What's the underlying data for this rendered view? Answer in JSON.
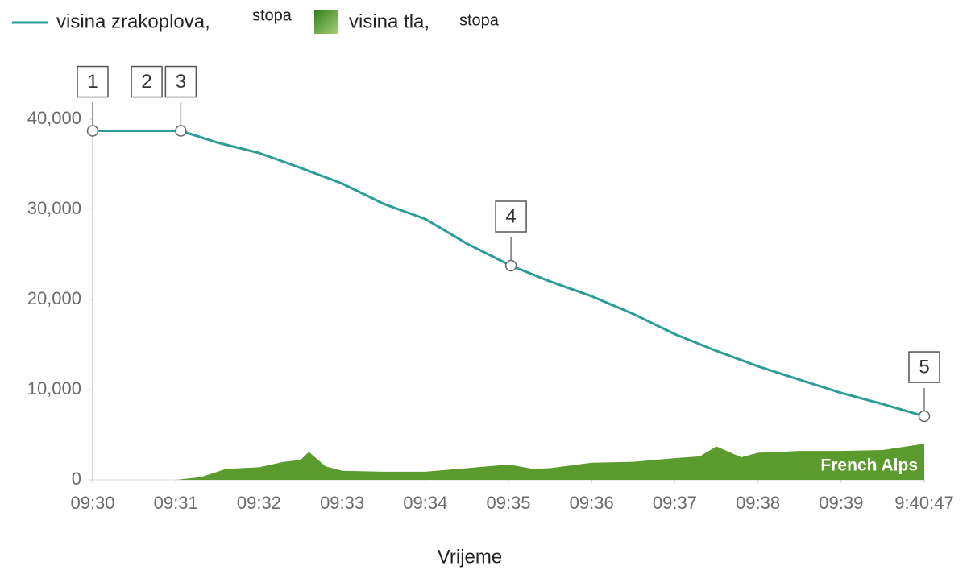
{
  "chart_data": {
    "type": "line",
    "x_label": "Vrijeme",
    "xlim": [
      0,
      10
    ],
    "xticks": [
      {
        "value": 0,
        "label": "09:30"
      },
      {
        "value": 1,
        "label": "09:31"
      },
      {
        "value": 2,
        "label": "09:32"
      },
      {
        "value": 3,
        "label": "09:33"
      },
      {
        "value": 4,
        "label": "09:34"
      },
      {
        "value": 5,
        "label": "09:35"
      },
      {
        "value": 6,
        "label": "09:36"
      },
      {
        "value": 7,
        "label": "09:37"
      },
      {
        "value": 8,
        "label": "09:38"
      },
      {
        "value": 9,
        "label": "09:39"
      },
      {
        "value": 10,
        "label": "9:40:47"
      }
    ],
    "ylim": [
      0,
      40000
    ],
    "yticks": [
      0,
      {
        "value": 10000,
        "label": "10,000"
      },
      {
        "value": 20000,
        "label": "20,000"
      },
      {
        "value": 30000,
        "label": "30,000"
      },
      {
        "value": 40000,
        "label": "40,000"
      }
    ],
    "series": [
      {
        "name": "visina zrakoplova,",
        "unit": "stopa",
        "color": "#2b9c9a",
        "type": "line",
        "x": [
          0,
          1.06,
          1.5,
          2,
          2.5,
          3,
          3.5,
          4,
          4.5,
          5.03,
          5.5,
          6,
          6.5,
          7,
          7.5,
          8,
          8.5,
          9,
          9.5,
          10
        ],
        "values": [
          38700,
          38700,
          37400,
          36250,
          34600,
          32860,
          30600,
          28930,
          26200,
          23750,
          22000,
          20360,
          18400,
          16160,
          14300,
          12590,
          11100,
          9640,
          8400,
          7050
        ]
      },
      {
        "name": "visina tla,",
        "unit": "stopa",
        "color": "#5b9a2c",
        "type": "area",
        "annotation": "French Alps",
        "x": [
          1,
          1.3,
          1.6,
          2,
          2.3,
          2.5,
          2.6,
          2.8,
          3,
          3.5,
          4,
          4.5,
          5,
          5.3,
          5.5,
          6,
          6.5,
          7,
          7.3,
          7.5,
          7.8,
          8,
          8.5,
          9,
          9.5,
          10
        ],
        "values": [
          0,
          300,
          1200,
          1400,
          2000,
          2200,
          3100,
          1500,
          1000,
          900,
          900,
          1300,
          1700,
          1200,
          1300,
          1900,
          2000,
          2400,
          2600,
          3700,
          2500,
          3000,
          3200,
          3200,
          3300,
          4000
        ]
      }
    ],
    "markers": [
      {
        "label": "1",
        "x": 0,
        "y": 38700
      },
      {
        "label": "2",
        "x": 0.65
      },
      {
        "label": "3",
        "x": 1.06,
        "y": 38700
      },
      {
        "label": "4",
        "x": 5.03,
        "y": 23750
      },
      {
        "label": "5",
        "x": 10,
        "y": 7050
      }
    ]
  }
}
